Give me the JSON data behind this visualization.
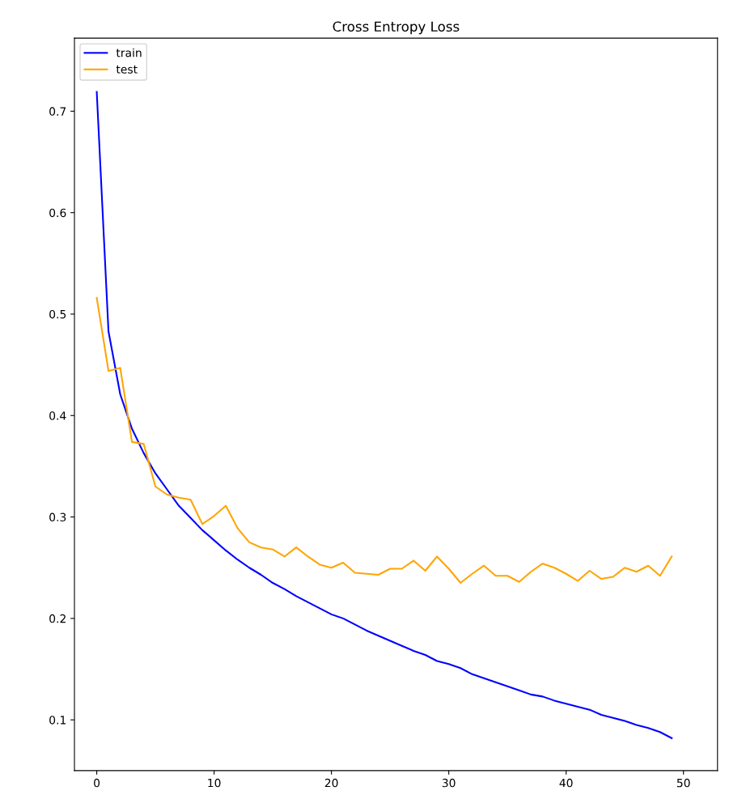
{
  "chart_data": {
    "type": "line",
    "title": "Cross Entropy Loss",
    "x": [
      0,
      1,
      2,
      3,
      4,
      5,
      6,
      7,
      8,
      9,
      10,
      11,
      12,
      13,
      14,
      15,
      16,
      17,
      18,
      19,
      20,
      21,
      22,
      23,
      24,
      25,
      26,
      27,
      28,
      29,
      30,
      31,
      32,
      33,
      34,
      35,
      36,
      37,
      38,
      39,
      40,
      41,
      42,
      43,
      44,
      45,
      46,
      47,
      48,
      49
    ],
    "series": [
      {
        "name": "train",
        "color": "#0000ff",
        "values": [
          0.719,
          0.483,
          0.421,
          0.387,
          0.363,
          0.343,
          0.327,
          0.311,
          0.299,
          0.287,
          0.277,
          0.267,
          0.258,
          0.25,
          0.243,
          0.235,
          0.229,
          0.222,
          0.216,
          0.21,
          0.204,
          0.2,
          0.194,
          0.188,
          0.183,
          0.178,
          0.173,
          0.168,
          0.164,
          0.158,
          0.155,
          0.151,
          0.145,
          0.141,
          0.137,
          0.133,
          0.129,
          0.125,
          0.123,
          0.119,
          0.116,
          0.113,
          0.11,
          0.105,
          0.102,
          0.099,
          0.095,
          0.092,
          0.088,
          0.082
        ]
      },
      {
        "name": "test",
        "color": "#ffa500",
        "values": [
          0.516,
          0.444,
          0.447,
          0.374,
          0.372,
          0.33,
          0.322,
          0.319,
          0.317,
          0.293,
          0.301,
          0.311,
          0.289,
          0.275,
          0.27,
          0.268,
          0.261,
          0.27,
          0.261,
          0.253,
          0.25,
          0.255,
          0.245,
          0.244,
          0.243,
          0.249,
          0.249,
          0.257,
          0.247,
          0.261,
          0.249,
          0.235,
          0.244,
          0.252,
          0.242,
          0.242,
          0.236,
          0.246,
          0.254,
          0.25,
          0.244,
          0.237,
          0.247,
          0.239,
          0.241,
          0.25,
          0.246,
          0.252,
          0.242,
          0.261
        ]
      }
    ],
    "xlim": [
      -1.9,
      52.9
    ],
    "ylim": [
      0.05,
      0.772
    ],
    "xticks": [
      0,
      10,
      20,
      30,
      40,
      50
    ],
    "yticks": [
      {
        "value": 0.1,
        "label": "0.1"
      },
      {
        "value": 0.2,
        "label": "0.2"
      },
      {
        "value": 0.3,
        "label": "0.3"
      },
      {
        "value": 0.4,
        "label": "0.4"
      },
      {
        "value": 0.5,
        "label": "0.5"
      },
      {
        "value": 0.6,
        "label": "0.6"
      },
      {
        "value": 0.7,
        "label": "0.7"
      }
    ],
    "legend": "upper left",
    "grid": false
  }
}
